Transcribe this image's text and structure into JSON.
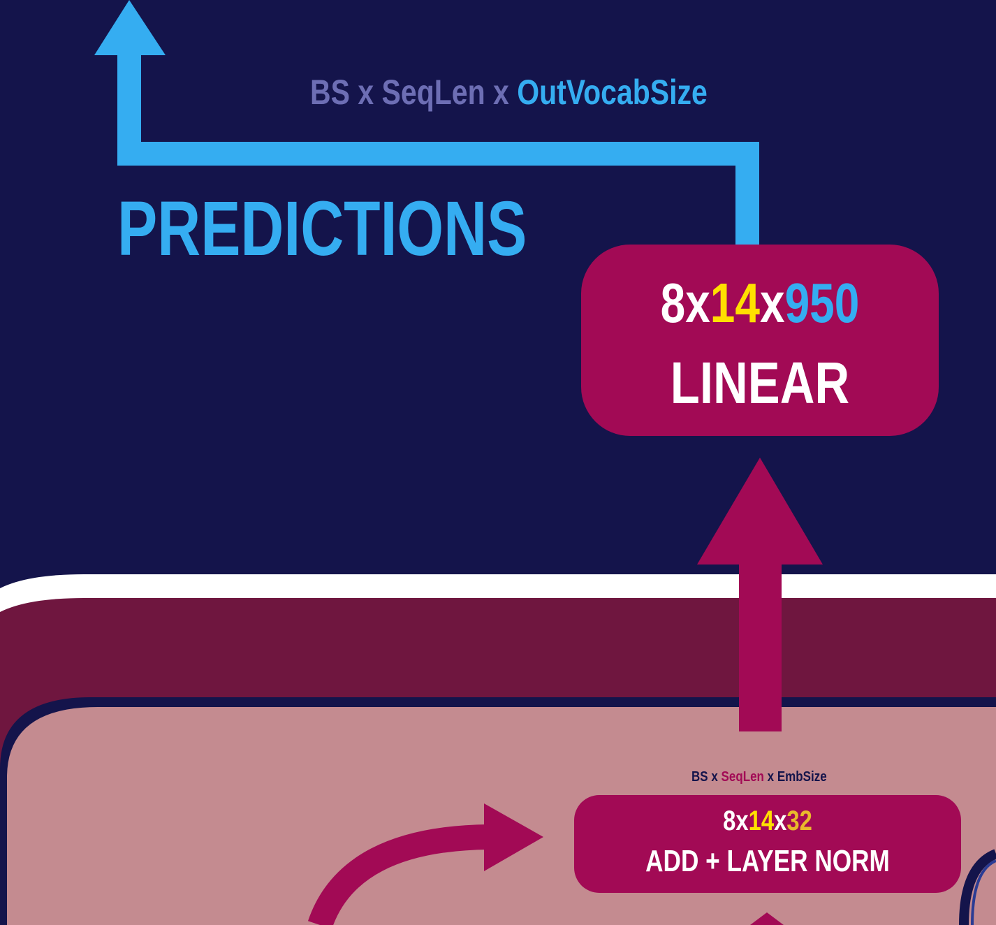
{
  "output_shape": {
    "part1": "BS x SeqLen x ",
    "part2": "OutVocabSize"
  },
  "predictions_label": "PREDICTIONS",
  "linear_block": {
    "dim_a": "8x",
    "dim_b": "14",
    "dim_x": "x",
    "dim_c": "950",
    "label": "LINEAR"
  },
  "embedding_shape": {
    "a": "BS x ",
    "b": "SeqLen",
    "c": " x EmbSize"
  },
  "addnorm_block": {
    "dim_a": "8x",
    "dim_b": "14",
    "dim_x": "x",
    "dim_c": "32",
    "label": "ADD + LAYER NORM"
  },
  "colors": {
    "background": "#14144b",
    "prediction_blue": "#35adf1",
    "block_magenta": "#a20a55",
    "decoder_band": "#6f163f",
    "decoder_inner": "#c48b90",
    "seq_yellow": "#ffe000",
    "emb_gold": "#e9b92c",
    "muted_text": "#6d6eb4"
  }
}
